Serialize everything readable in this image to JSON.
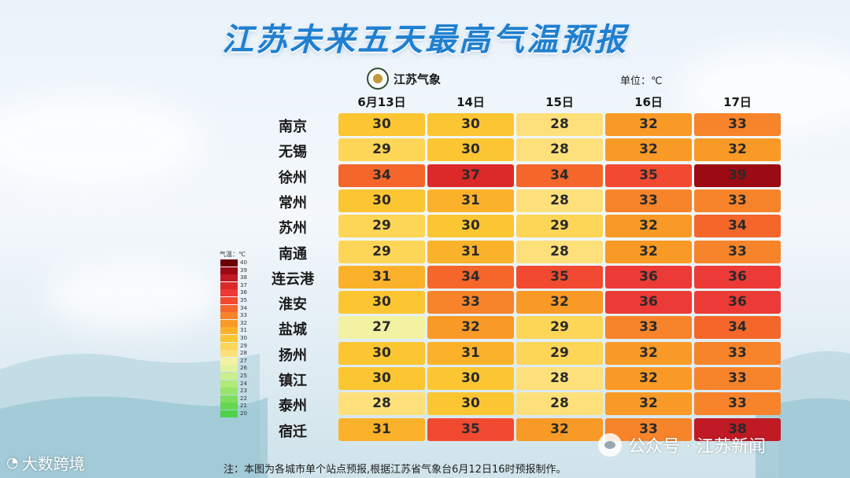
{
  "title": "江苏未来五天最高气温预报",
  "logo_text": "江苏气象",
  "unit": "单位：℃",
  "footnote": "注：本图为各城市单个站点预报,根据江苏省气象台6月12日16时预报制作。",
  "watermarks": {
    "left": "大数跨境",
    "right": "公众号 · 江苏新闻"
  },
  "legend": {
    "title": "气温：℃",
    "levels": [
      {
        "label": "40",
        "color": "#6e0000"
      },
      {
        "label": "39",
        "color": "#9c0a14"
      },
      {
        "label": "38",
        "color": "#c01a24"
      },
      {
        "label": "37",
        "color": "#dc2a2a"
      },
      {
        "label": "36",
        "color": "#ec3a36"
      },
      {
        "label": "35",
        "color": "#f24a30"
      },
      {
        "label": "34",
        "color": "#f5662a"
      },
      {
        "label": "33",
        "color": "#f7842a"
      },
      {
        "label": "32",
        "color": "#f99a26"
      },
      {
        "label": "31",
        "color": "#fbb22a"
      },
      {
        "label": "30",
        "color": "#fcc632"
      },
      {
        "label": "29",
        "color": "#fdd658"
      },
      {
        "label": "28",
        "color": "#fde07a"
      },
      {
        "label": "27",
        "color": "#f3f2a2"
      },
      {
        "label": "26",
        "color": "#e2f3a0"
      },
      {
        "label": "25",
        "color": "#c9f08c"
      },
      {
        "label": "24",
        "color": "#b0ea7a"
      },
      {
        "label": "23",
        "color": "#96e46a"
      },
      {
        "label": "22",
        "color": "#7cde5c"
      },
      {
        "label": "21",
        "color": "#64d852"
      },
      {
        "label": "20",
        "color": "#4ed24a"
      }
    ]
  },
  "chart_data": {
    "type": "heatmap",
    "title": "江苏未来五天最高气温预报",
    "unit": "℃",
    "columns": [
      "6月13日",
      "14日",
      "15日",
      "16日",
      "17日"
    ],
    "rows": [
      "南京",
      "无锡",
      "徐州",
      "常州",
      "苏州",
      "南通",
      "连云港",
      "淮安",
      "盐城",
      "扬州",
      "镇江",
      "泰州",
      "宿迁"
    ],
    "values": [
      [
        30,
        30,
        28,
        32,
        33
      ],
      [
        29,
        30,
        28,
        32,
        32
      ],
      [
        34,
        37,
        34,
        35,
        39
      ],
      [
        30,
        31,
        28,
        33,
        33
      ],
      [
        29,
        30,
        29,
        32,
        34
      ],
      [
        29,
        31,
        28,
        32,
        33
      ],
      [
        31,
        34,
        35,
        36,
        36
      ],
      [
        30,
        33,
        32,
        36,
        36
      ],
      [
        27,
        32,
        29,
        33,
        34
      ],
      [
        30,
        31,
        29,
        32,
        33
      ],
      [
        30,
        30,
        28,
        32,
        33
      ],
      [
        28,
        30,
        28,
        32,
        33
      ],
      [
        31,
        35,
        32,
        33,
        38
      ]
    ]
  }
}
